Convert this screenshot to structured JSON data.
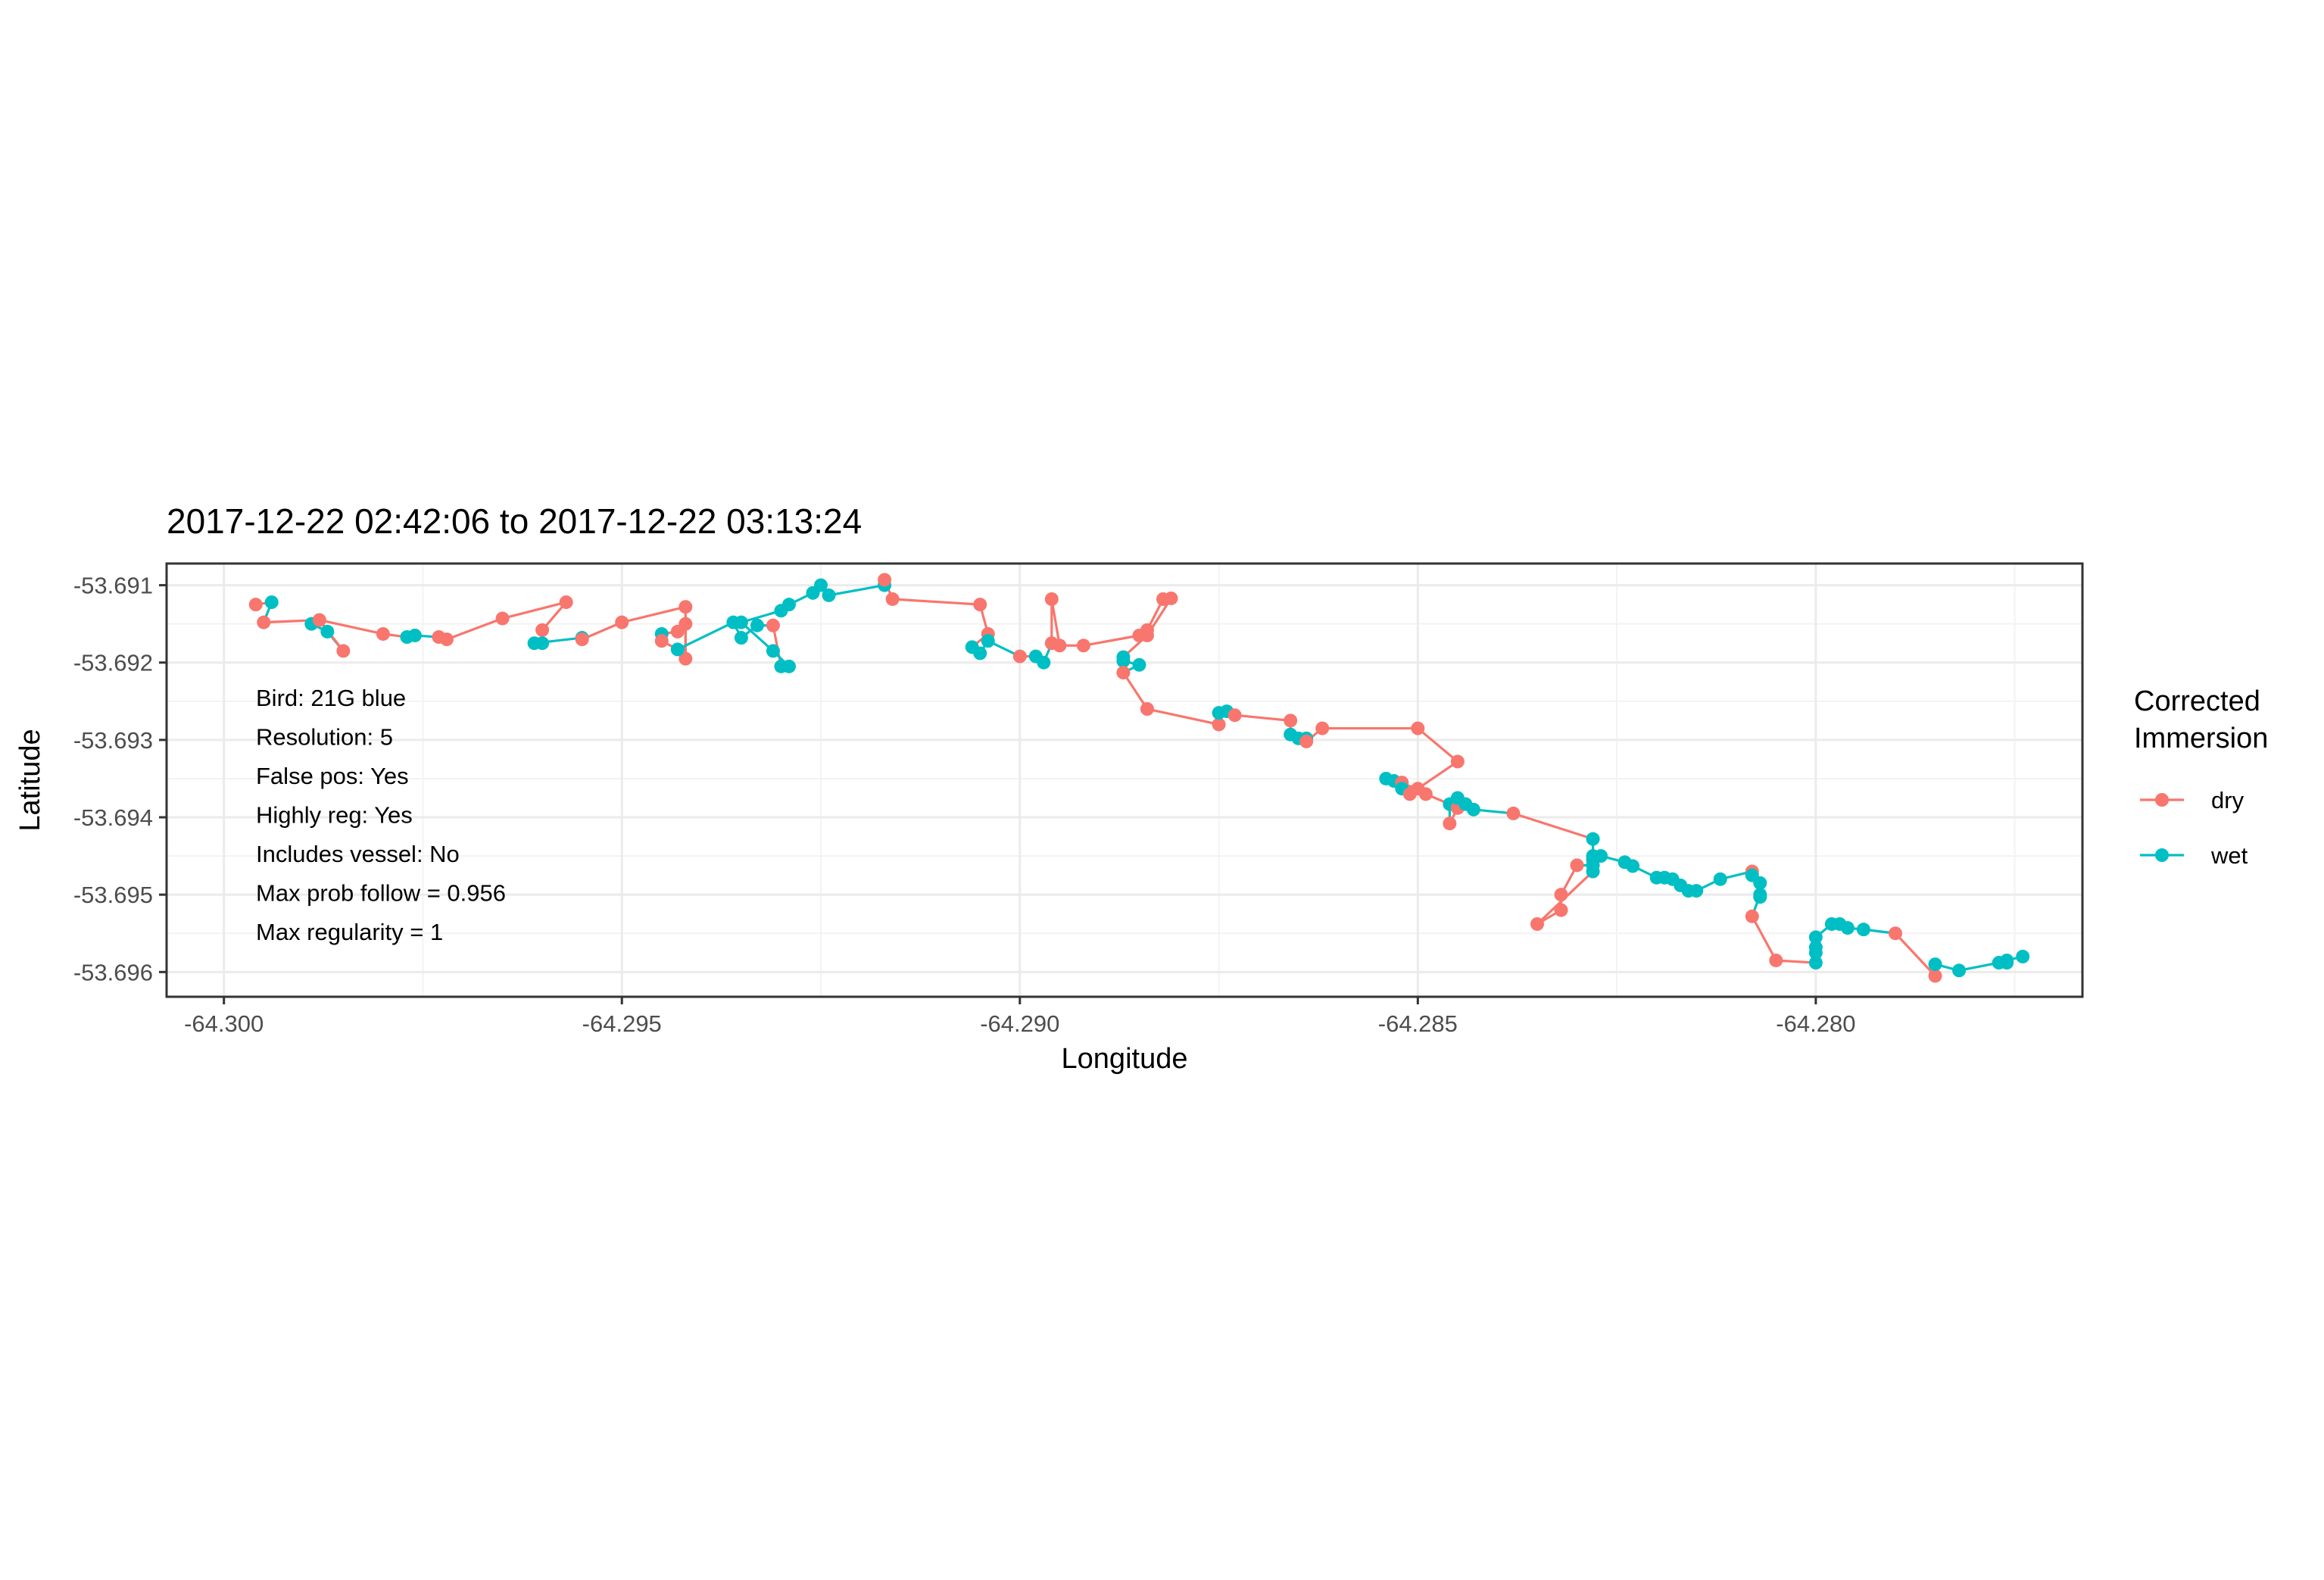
{
  "chart_data": {
    "type": "scatter",
    "subtype": "path-with-points",
    "title": "2017-12-22 02:42:06 to 2017-12-22 03:13:24",
    "xlabel": "Longitude",
    "ylabel": "Latitude",
    "xlim": [
      -64.30072,
      -64.27665
    ],
    "ylim": [
      -53.69632,
      -53.69072
    ],
    "x_ticks": [
      -64.3,
      -64.295,
      -64.29,
      -64.285,
      -64.28
    ],
    "x_tick_labels": [
      "-64.300",
      "-64.295",
      "-64.290",
      "-64.285",
      "-64.280"
    ],
    "y_ticks": [
      -53.691,
      -53.692,
      -53.693,
      -53.694,
      -53.695,
      -53.696
    ],
    "y_tick_labels": [
      "-53.691",
      "-53.692",
      "-53.693",
      "-53.694",
      "-53.695",
      "-53.696"
    ],
    "grid": true,
    "legend": {
      "title_lines": [
        "Corrected",
        "Immersion"
      ],
      "position": "right",
      "entries": [
        {
          "name": "dry",
          "color": "#F8766D"
        },
        {
          "name": "wet",
          "color": "#00BFC4"
        }
      ]
    },
    "annotations": [
      "Bird: 21G blue",
      "Resolution: 5",
      "False pos: Yes",
      "Highly reg: Yes",
      "Includes vessel: No",
      "Max prob follow = 0.956",
      "Max regularity = 1"
    ],
    "colors": {
      "dry": "#F8766D",
      "wet": "#00BFC4"
    },
    "track": [
      [
        -64.2996,
        -53.69125,
        "dry"
      ],
      [
        -64.2994,
        -53.69122,
        "wet"
      ],
      [
        -64.2995,
        -53.69148,
        "dry"
      ],
      [
        -64.2988,
        -53.69145,
        "dry"
      ],
      [
        -64.2989,
        -53.6915,
        "wet"
      ],
      [
        -64.2987,
        -53.6916,
        "wet"
      ],
      [
        -64.2985,
        -53.69185,
        "dry"
      ],
      [
        -64.2988,
        -53.69145,
        "dry"
      ],
      [
        -64.298,
        -53.69163,
        "dry"
      ],
      [
        -64.2977,
        -53.69167,
        "wet"
      ],
      [
        -64.2976,
        -53.69165,
        "wet"
      ],
      [
        -64.2973,
        -53.69167,
        "dry"
      ],
      [
        -64.2972,
        -53.6917,
        "dry"
      ],
      [
        -64.2965,
        -53.69143,
        "dry"
      ],
      [
        -64.2957,
        -53.69122,
        "dry"
      ],
      [
        -64.296,
        -53.69158,
        "dry"
      ],
      [
        -64.296,
        -53.69175,
        "wet"
      ],
      [
        -64.2961,
        -53.69175,
        "wet"
      ],
      [
        -64.2955,
        -53.69168,
        "wet"
      ],
      [
        -64.2955,
        -53.6917,
        "dry"
      ],
      [
        -64.295,
        -53.69148,
        "dry"
      ],
      [
        -64.2942,
        -53.69128,
        "dry"
      ],
      [
        -64.2942,
        -53.69195,
        "dry"
      ],
      [
        -64.2942,
        -53.6915,
        "dry"
      ],
      [
        -64.2943,
        -53.6916,
        "dry"
      ],
      [
        -64.2945,
        -53.69163,
        "wet"
      ],
      [
        -64.2945,
        -53.69172,
        "dry"
      ],
      [
        -64.2943,
        -53.69183,
        "wet"
      ],
      [
        -64.2936,
        -53.69148,
        "wet"
      ],
      [
        -64.2935,
        -53.69168,
        "wet"
      ],
      [
        -64.2933,
        -53.69152,
        "wet"
      ],
      [
        -64.2931,
        -53.69152,
        "dry"
      ],
      [
        -64.293,
        -53.69205,
        "wet"
      ],
      [
        -64.2929,
        -53.69205,
        "wet"
      ],
      [
        -64.2931,
        -53.69185,
        "wet"
      ],
      [
        -64.2935,
        -53.69148,
        "wet"
      ],
      [
        -64.293,
        -53.69133,
        "wet"
      ],
      [
        -64.2929,
        -53.69125,
        "wet"
      ],
      [
        -64.2926,
        -53.6911,
        "wet"
      ],
      [
        -64.2925,
        -53.691,
        "wet"
      ],
      [
        -64.2924,
        -53.69113,
        "wet"
      ],
      [
        -64.2917,
        -53.691,
        "wet"
      ],
      [
        -64.2917,
        -53.69093,
        "dry"
      ],
      [
        -64.2916,
        -53.69118,
        "dry"
      ],
      [
        -64.2905,
        -53.69125,
        "dry"
      ],
      [
        -64.2904,
        -53.69163,
        "dry"
      ],
      [
        -64.2906,
        -53.6918,
        "wet"
      ],
      [
        -64.2905,
        -53.69188,
        "wet"
      ],
      [
        -64.2904,
        -53.69172,
        "wet"
      ],
      [
        -64.29,
        -53.69192,
        "dry"
      ],
      [
        -64.2898,
        -53.69192,
        "wet"
      ],
      [
        -64.2897,
        -53.692,
        "wet"
      ],
      [
        -64.2896,
        -53.69175,
        "dry"
      ],
      [
        -64.2896,
        -53.69118,
        "dry"
      ],
      [
        -64.2895,
        -53.69178,
        "dry"
      ],
      [
        -64.2892,
        -53.69178,
        "dry"
      ],
      [
        -64.2885,
        -53.69165,
        "dry"
      ],
      [
        -64.2884,
        -53.69158,
        "dry"
      ],
      [
        -64.2882,
        -53.69118,
        "dry"
      ],
      [
        -64.2881,
        -53.69117,
        "dry"
      ],
      [
        -64.2884,
        -53.69165,
        "dry"
      ],
      [
        -64.2887,
        -53.69193,
        "wet"
      ],
      [
        -64.2887,
        -53.69198,
        "wet"
      ],
      [
        -64.2885,
        -53.69203,
        "wet"
      ],
      [
        -64.2887,
        -53.69213,
        "dry"
      ],
      [
        -64.2884,
        -53.6926,
        "dry"
      ],
      [
        -64.2875,
        -53.6928,
        "dry"
      ],
      [
        -64.2875,
        -53.69265,
        "wet"
      ],
      [
        -64.2874,
        -53.69263,
        "wet"
      ],
      [
        -64.2873,
        -53.69268,
        "dry"
      ],
      [
        -64.2866,
        -53.69275,
        "dry"
      ],
      [
        -64.2866,
        -53.69293,
        "wet"
      ],
      [
        -64.2865,
        -53.69298,
        "wet"
      ],
      [
        -64.2864,
        -53.69298,
        "wet"
      ],
      [
        -64.2864,
        -53.69302,
        "dry"
      ],
      [
        -64.2862,
        -53.69285,
        "dry"
      ],
      [
        -64.285,
        -53.69285,
        "dry"
      ],
      [
        -64.2845,
        -53.69328,
        "dry"
      ],
      [
        -64.285,
        -53.69363,
        "dry"
      ],
      [
        -64.2854,
        -53.6935,
        "wet"
      ],
      [
        -64.2853,
        -53.69353,
        "wet"
      ],
      [
        -64.2852,
        -53.69355,
        "dry"
      ],
      [
        -64.2852,
        -53.69363,
        "wet"
      ],
      [
        -64.2851,
        -53.6937,
        "dry"
      ],
      [
        -64.2849,
        -53.6937,
        "dry"
      ],
      [
        -64.2846,
        -53.69383,
        "wet"
      ],
      [
        -64.2846,
        -53.69408,
        "dry"
      ],
      [
        -64.2845,
        -53.69388,
        "dry"
      ],
      [
        -64.2845,
        -53.69375,
        "wet"
      ],
      [
        -64.2844,
        -53.69383,
        "wet"
      ],
      [
        -64.2843,
        -53.6939,
        "wet"
      ],
      [
        -64.2838,
        -53.69395,
        "dry"
      ],
      [
        -64.2828,
        -53.69428,
        "wet"
      ],
      [
        -64.2828,
        -53.6945,
        "wet"
      ],
      [
        -64.2828,
        -53.69455,
        "wet"
      ],
      [
        -64.2828,
        -53.69462,
        "wet"
      ],
      [
        -64.283,
        -53.69462,
        "dry"
      ],
      [
        -64.2832,
        -53.695,
        "dry"
      ],
      [
        -64.2832,
        -53.6952,
        "dry"
      ],
      [
        -64.2835,
        -53.69538,
        "dry"
      ],
      [
        -64.2828,
        -53.6947,
        "wet"
      ],
      [
        -64.2827,
        -53.6945,
        "wet"
      ],
      [
        -64.2824,
        -53.69458,
        "wet"
      ],
      [
        -64.2823,
        -53.69463,
        "wet"
      ],
      [
        -64.282,
        -53.69478,
        "wet"
      ],
      [
        -64.2819,
        -53.69478,
        "wet"
      ],
      [
        -64.2818,
        -53.6948,
        "wet"
      ],
      [
        -64.2817,
        -53.69488,
        "wet"
      ],
      [
        -64.2816,
        -53.69495,
        "wet"
      ],
      [
        -64.2815,
        -53.69495,
        "wet"
      ],
      [
        -64.2812,
        -53.6948,
        "wet"
      ],
      [
        -64.2808,
        -53.6947,
        "dry"
      ],
      [
        -64.2808,
        -53.69475,
        "wet"
      ],
      [
        -64.2807,
        -53.69485,
        "wet"
      ],
      [
        -64.2807,
        -53.69503,
        "wet"
      ],
      [
        -64.2807,
        -53.695,
        "wet"
      ],
      [
        -64.2808,
        -53.69528,
        "dry"
      ],
      [
        -64.2805,
        -53.69585,
        "dry"
      ],
      [
        -64.28,
        -53.69588,
        "wet"
      ],
      [
        -64.28,
        -53.69575,
        "wet"
      ],
      [
        -64.28,
        -53.69568,
        "wet"
      ],
      [
        -64.28,
        -53.69555,
        "wet"
      ],
      [
        -64.2798,
        -53.69538,
        "wet"
      ],
      [
        -64.2797,
        -53.69538,
        "wet"
      ],
      [
        -64.2796,
        -53.69543,
        "wet"
      ],
      [
        -64.2794,
        -53.69545,
        "wet"
      ],
      [
        -64.279,
        -53.6955,
        "dry"
      ],
      [
        -64.2785,
        -53.69605,
        "dry"
      ],
      [
        -64.2785,
        -53.6959,
        "wet"
      ],
      [
        -64.2782,
        -53.69598,
        "wet"
      ],
      [
        -64.2777,
        -53.69588,
        "wet"
      ],
      [
        -64.2776,
        -53.69588,
        "wet"
      ],
      [
        -64.2776,
        -53.69585,
        "wet"
      ],
      [
        -64.2774,
        -53.6958,
        "wet"
      ]
    ]
  }
}
